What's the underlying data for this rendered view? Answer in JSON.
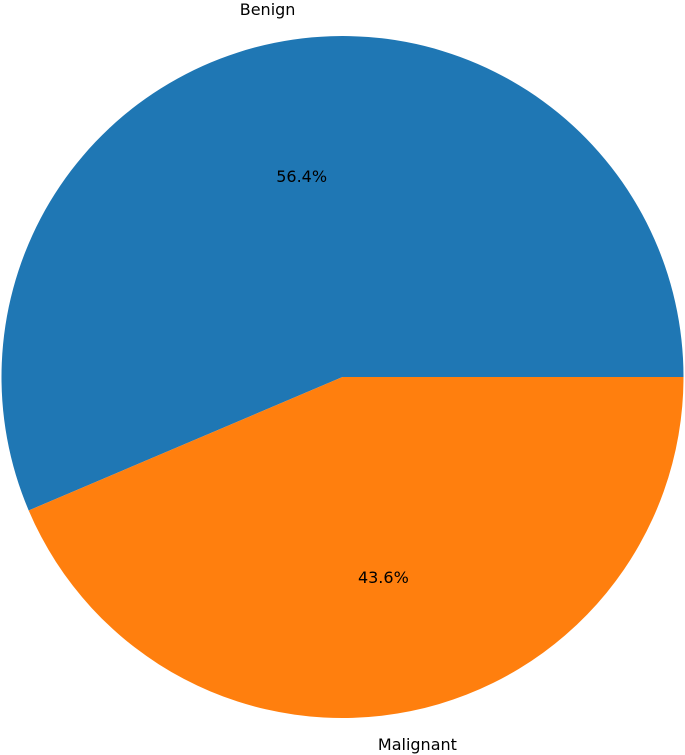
{
  "chart_data": {
    "type": "pie",
    "categories": [
      "Benign",
      "Malignant"
    ],
    "values": [
      56.4,
      43.6
    ],
    "percent_labels": [
      "56.4%",
      "43.6%"
    ],
    "colors": [
      "#1f77b4",
      "#ff7f0e"
    ],
    "start_angle_deg": 0,
    "direction": "counterclockwise",
    "title": "",
    "legend": "none"
  }
}
